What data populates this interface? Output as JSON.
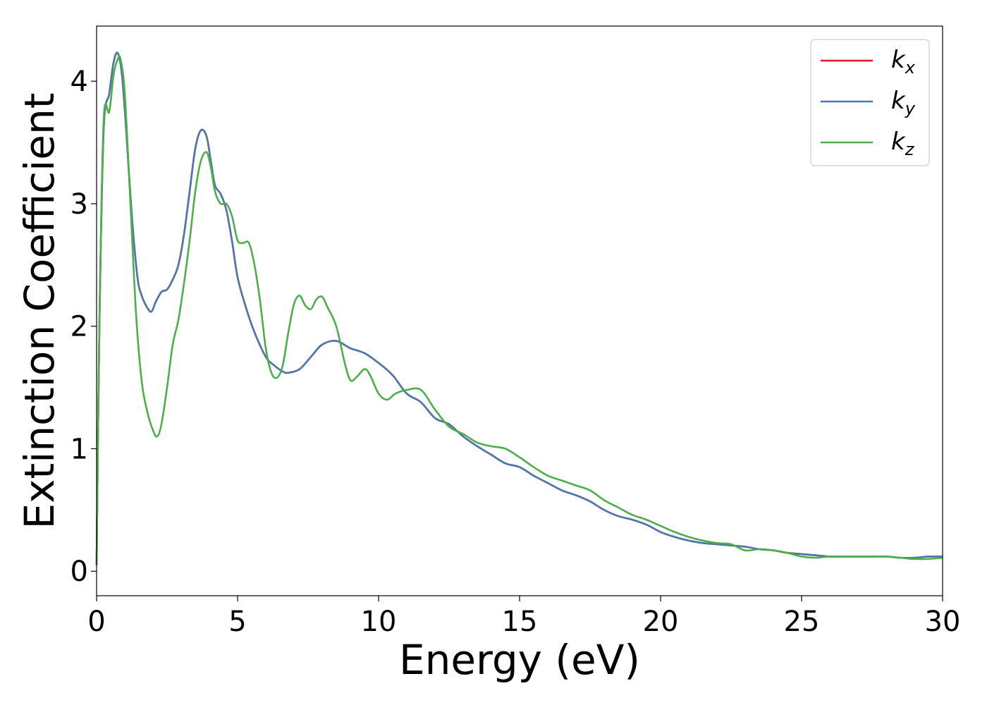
{
  "chart_data": {
    "type": "line",
    "xlabel": "Energy (eV)",
    "ylabel": "Extinction Coefficient",
    "xlim": [
      0,
      30
    ],
    "ylim": [
      -0.2,
      4.45
    ],
    "xticks": [
      0,
      5,
      10,
      15,
      20,
      25,
      30
    ],
    "yticks": [
      0,
      1,
      2,
      3,
      4
    ],
    "grid": false,
    "legend_position": "top-right",
    "series": [
      {
        "name": "kx",
        "label_base": "k",
        "label_sub": "x",
        "color": "#e41a1c",
        "x": [
          0,
          0.1,
          0.25,
          0.45,
          0.6,
          0.75,
          0.9,
          1.05,
          1.25,
          1.45,
          1.6,
          1.8,
          1.95,
          2.1,
          2.3,
          2.5,
          2.7,
          2.9,
          3.1,
          3.3,
          3.5,
          3.7,
          3.9,
          4.05,
          4.2,
          4.4,
          4.6,
          4.8,
          5.0,
          5.3,
          5.6,
          6.0,
          6.3,
          6.6,
          6.8,
          7.2,
          7.6,
          8.0,
          8.5,
          9.0,
          9.5,
          10.0,
          10.5,
          11.0,
          11.5,
          12.0,
          12.5,
          13.0,
          13.5,
          14.0,
          14.5,
          15.0,
          15.5,
          16.0,
          16.5,
          17.0,
          17.5,
          18.0,
          18.5,
          19.0,
          19.5,
          20.0,
          20.5,
          21.0,
          21.5,
          22.0,
          22.5,
          23.0,
          23.5,
          24.0,
          24.5,
          25.0,
          25.5,
          26.0,
          26.5,
          27.0,
          27.5,
          28.0,
          28.5,
          29.0,
          29.5,
          30.0
        ],
        "y": [
          0.05,
          2.0,
          3.6,
          3.9,
          4.15,
          4.23,
          4.05,
          3.6,
          2.9,
          2.4,
          2.25,
          2.15,
          2.12,
          2.2,
          2.28,
          2.3,
          2.38,
          2.5,
          2.75,
          3.1,
          3.45,
          3.6,
          3.55,
          3.35,
          3.15,
          3.08,
          2.95,
          2.7,
          2.4,
          2.15,
          1.95,
          1.75,
          1.68,
          1.63,
          1.62,
          1.65,
          1.75,
          1.85,
          1.88,
          1.82,
          1.78,
          1.7,
          1.6,
          1.45,
          1.38,
          1.25,
          1.2,
          1.1,
          1.02,
          0.95,
          0.88,
          0.85,
          0.78,
          0.72,
          0.66,
          0.62,
          0.57,
          0.5,
          0.45,
          0.42,
          0.38,
          0.32,
          0.28,
          0.25,
          0.23,
          0.22,
          0.21,
          0.2,
          0.18,
          0.17,
          0.15,
          0.14,
          0.13,
          0.12,
          0.12,
          0.12,
          0.12,
          0.12,
          0.11,
          0.11,
          0.12,
          0.12
        ]
      },
      {
        "name": "ky",
        "label_base": "k",
        "label_sub": "y",
        "color": "#4a79b0",
        "x": [
          0,
          0.1,
          0.25,
          0.45,
          0.6,
          0.75,
          0.9,
          1.05,
          1.25,
          1.45,
          1.6,
          1.8,
          1.95,
          2.1,
          2.3,
          2.5,
          2.7,
          2.9,
          3.1,
          3.3,
          3.5,
          3.7,
          3.9,
          4.05,
          4.2,
          4.4,
          4.6,
          4.8,
          5.0,
          5.3,
          5.6,
          6.0,
          6.3,
          6.6,
          6.8,
          7.2,
          7.6,
          8.0,
          8.5,
          9.0,
          9.5,
          10.0,
          10.5,
          11.0,
          11.5,
          12.0,
          12.5,
          13.0,
          13.5,
          14.0,
          14.5,
          15.0,
          15.5,
          16.0,
          16.5,
          17.0,
          17.5,
          18.0,
          18.5,
          19.0,
          19.5,
          20.0,
          20.5,
          21.0,
          21.5,
          22.0,
          22.5,
          23.0,
          23.5,
          24.0,
          24.5,
          25.0,
          25.5,
          26.0,
          26.5,
          27.0,
          27.5,
          28.0,
          28.5,
          29.0,
          29.5,
          30.0
        ],
        "y": [
          0.05,
          2.0,
          3.6,
          3.9,
          4.15,
          4.23,
          4.05,
          3.6,
          2.9,
          2.4,
          2.25,
          2.15,
          2.12,
          2.2,
          2.28,
          2.3,
          2.38,
          2.5,
          2.75,
          3.1,
          3.45,
          3.6,
          3.55,
          3.35,
          3.15,
          3.08,
          2.95,
          2.7,
          2.4,
          2.15,
          1.95,
          1.75,
          1.68,
          1.63,
          1.62,
          1.65,
          1.75,
          1.85,
          1.88,
          1.82,
          1.78,
          1.7,
          1.6,
          1.45,
          1.38,
          1.25,
          1.2,
          1.1,
          1.02,
          0.95,
          0.88,
          0.85,
          0.78,
          0.72,
          0.66,
          0.62,
          0.57,
          0.5,
          0.45,
          0.42,
          0.38,
          0.32,
          0.28,
          0.25,
          0.23,
          0.22,
          0.21,
          0.2,
          0.18,
          0.17,
          0.15,
          0.14,
          0.13,
          0.12,
          0.12,
          0.12,
          0.12,
          0.12,
          0.11,
          0.11,
          0.12,
          0.12
        ]
      },
      {
        "name": "kz",
        "label_base": "k",
        "label_sub": "z",
        "color": "#4daf4a",
        "x": [
          0,
          0.1,
          0.25,
          0.45,
          0.6,
          0.75,
          0.85,
          1.0,
          1.2,
          1.4,
          1.6,
          1.8,
          2.0,
          2.15,
          2.3,
          2.5,
          2.7,
          2.9,
          3.1,
          3.3,
          3.5,
          3.7,
          3.9,
          4.05,
          4.2,
          4.4,
          4.6,
          4.8,
          5.0,
          5.2,
          5.4,
          5.6,
          5.8,
          6.0,
          6.2,
          6.4,
          6.6,
          6.8,
          7.0,
          7.2,
          7.4,
          7.6,
          7.8,
          8.0,
          8.2,
          8.5,
          8.8,
          9.0,
          9.2,
          9.5,
          9.7,
          10.0,
          10.3,
          10.6,
          11.0,
          11.5,
          12.0,
          12.5,
          13.0,
          13.5,
          14.0,
          14.5,
          15.0,
          15.5,
          16.0,
          16.5,
          17.0,
          17.5,
          18.0,
          18.5,
          19.0,
          19.5,
          20.0,
          20.5,
          21.0,
          21.5,
          22.0,
          22.5,
          23.0,
          23.5,
          24.0,
          24.5,
          25.0,
          25.5,
          26.0,
          26.5,
          27.0,
          27.5,
          28.0,
          28.5,
          29.0,
          29.5,
          30.0
        ],
        "y": [
          0.05,
          2.0,
          3.68,
          3.75,
          4.05,
          4.18,
          4.18,
          3.9,
          3.0,
          2.1,
          1.55,
          1.3,
          1.15,
          1.1,
          1.2,
          1.5,
          1.85,
          2.05,
          2.35,
          2.7,
          3.1,
          3.35,
          3.42,
          3.3,
          3.1,
          3.0,
          3.0,
          2.9,
          2.7,
          2.68,
          2.68,
          2.5,
          2.2,
          1.82,
          1.62,
          1.58,
          1.68,
          1.95,
          2.18,
          2.25,
          2.17,
          2.14,
          2.22,
          2.24,
          2.15,
          2.0,
          1.7,
          1.56,
          1.58,
          1.65,
          1.6,
          1.45,
          1.4,
          1.45,
          1.48,
          1.48,
          1.32,
          1.18,
          1.12,
          1.05,
          1.02,
          1.0,
          0.93,
          0.85,
          0.78,
          0.74,
          0.7,
          0.66,
          0.58,
          0.52,
          0.46,
          0.42,
          0.37,
          0.32,
          0.28,
          0.25,
          0.23,
          0.22,
          0.17,
          0.18,
          0.17,
          0.15,
          0.12,
          0.11,
          0.12,
          0.12,
          0.12,
          0.12,
          0.12,
          0.11,
          0.1,
          0.1,
          0.11
        ]
      }
    ]
  }
}
